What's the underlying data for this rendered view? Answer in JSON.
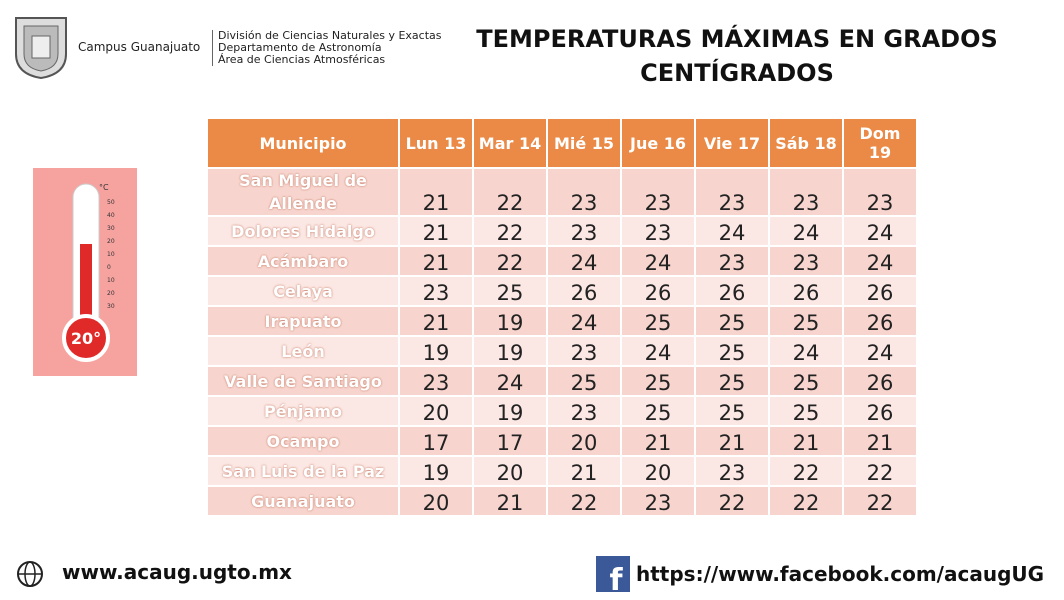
{
  "header": {
    "campus": "Campus Guanajuato",
    "department_lines": [
      "División de Ciencias Naturales y Exactas",
      "Departamento de Astronomía",
      "Área de Ciencias Atmosféricas"
    ],
    "title": "TEMPERATURAS MÁXIMAS EN GRADOS CENTÍGRADOS"
  },
  "thermometer": {
    "unit": "°C",
    "scale": [
      "50",
      "40",
      "30",
      "20",
      "10",
      "0",
      "10",
      "20",
      "30"
    ],
    "reading": "20°"
  },
  "table": {
    "columns": [
      "Municipio",
      "Lun 13",
      "Mar 14",
      "Mié 15",
      "Jue 16",
      "Vie 17",
      "Sáb 18",
      "Dom 19"
    ],
    "rows": [
      [
        "San Miguel de Allende",
        21,
        22,
        23,
        23,
        23,
        23,
        23
      ],
      [
        "Dolores Hidalgo",
        21,
        22,
        23,
        23,
        24,
        24,
        24
      ],
      [
        "Acámbaro",
        21,
        22,
        24,
        24,
        23,
        23,
        24
      ],
      [
        "Celaya",
        23,
        25,
        26,
        26,
        26,
        26,
        26
      ],
      [
        "Irapuato",
        21,
        19,
        24,
        25,
        25,
        25,
        26
      ],
      [
        "León",
        19,
        19,
        23,
        24,
        25,
        24,
        24
      ],
      [
        "Valle de Santiago",
        23,
        24,
        25,
        25,
        25,
        25,
        26
      ],
      [
        "Pénjamo",
        20,
        19,
        23,
        25,
        25,
        25,
        26
      ],
      [
        "Ocampo",
        17,
        17,
        20,
        21,
        21,
        21,
        21
      ],
      [
        "San Luis de la Paz",
        19,
        20,
        21,
        20,
        23,
        22,
        22
      ],
      [
        "Guanajuato",
        20,
        21,
        22,
        23,
        22,
        22,
        22
      ]
    ]
  },
  "footer": {
    "website": "www.acaug.ugto.mx",
    "facebook": "https://www.facebook.com/acaugUG"
  }
}
